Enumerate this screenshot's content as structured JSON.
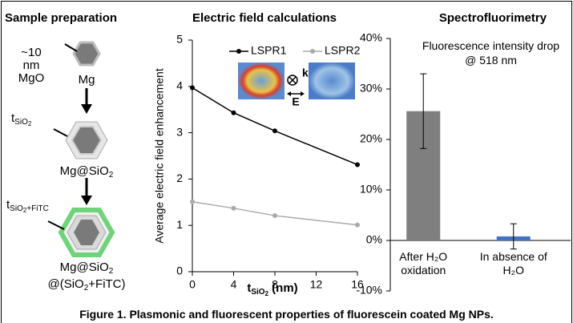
{
  "panel_titles": [
    "Sample preparation",
    "Electric field calculations",
    "Spectrofluorimetry"
  ],
  "schematic": {
    "mgo_size": "~10 nm",
    "mgo": "MgO",
    "core": "Mg",
    "shell_thickness": {
      "base": "t",
      "sub": "SiO",
      "subsub": "2"
    },
    "core_shell": {
      "base": "Mg@SiO",
      "sub": "2"
    },
    "outer_thickness": {
      "base": "t",
      "sub": "SiO",
      "subsub": "2",
      "subrest": "+FiTC"
    },
    "final_line1": {
      "base": "Mg@SiO",
      "sub": "2"
    },
    "final_line2": {
      "base": "@(SiO",
      "sub": "2",
      "rest": "+FiTC)"
    }
  },
  "chart_data": [
    {
      "type": "line",
      "x_label": {
        "base": "t",
        "sub": "SiO",
        "subsub": "2",
        "rest": " (nm)"
      },
      "y_label": "Average electric field enhancement",
      "x": [
        0,
        4,
        8,
        16
      ],
      "series": [
        {
          "name": "LSPR1",
          "color": "#000000",
          "values": [
            3.97,
            3.43,
            3.04,
            2.31
          ]
        },
        {
          "name": "LSPR2",
          "color": "#aaaaaa",
          "values": [
            1.51,
            1.37,
            1.21,
            1.01
          ]
        }
      ],
      "xlim": [
        0,
        16
      ],
      "xticks": [
        0,
        4,
        8,
        12,
        16
      ],
      "ylim": [
        0,
        5
      ],
      "yticks": [
        0,
        1,
        2,
        3,
        4,
        5
      ],
      "inset_labels": [
        "k",
        "E"
      ]
    },
    {
      "type": "bar",
      "annotation": "Fluorescence intensity drop @ 518 nm",
      "categories": [
        "After H₂O oxidation",
        "In absence of H₂O"
      ],
      "values": [
        25.6,
        0.8
      ],
      "errors": [
        7.4,
        2.5
      ],
      "colors": [
        "#7f7f7f",
        "#4472c4"
      ],
      "ylim": [
        -10,
        40
      ],
      "yticks": [
        {
          "value": -10,
          "label": "-10%"
        },
        {
          "value": 0,
          "label": "0%"
        },
        {
          "value": 10,
          "label": "10%"
        },
        {
          "value": 20,
          "label": "20%"
        },
        {
          "value": 30,
          "label": "30%"
        },
        {
          "value": 40,
          "label": "40%"
        }
      ]
    }
  ],
  "caption": "Figure 1. Plasmonic and fluorescent properties of fluorescein coated Mg NPs."
}
